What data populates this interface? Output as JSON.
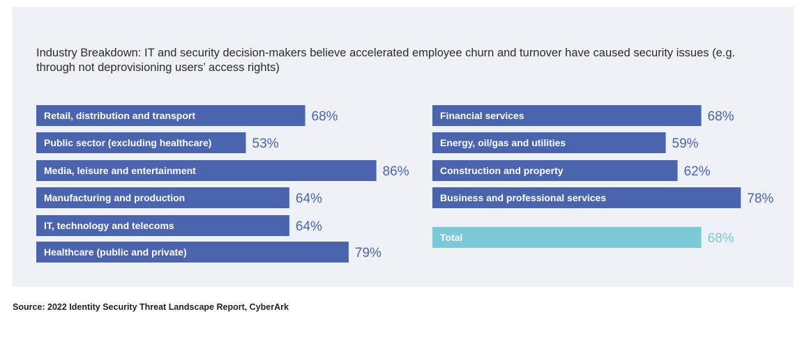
{
  "chart_data": {
    "type": "bar",
    "title": "Industry Breakdown: IT and security decision-makers believe accelerated employee churn and turnover have caused security issues (e.g. through not deprovisioning users’ access rights)",
    "source": "Source: 2022 Identity Security Threat Landscape Report, CyberArk",
    "unit": "%",
    "colors": {
      "bar": "#4a64ad",
      "total": "#7dc8d6",
      "value_text": "#4a64ad",
      "total_text": "#7dc8d6"
    },
    "left_column": [
      {
        "category": "Retail, distribution and transport",
        "value": 68
      },
      {
        "category": "Public sector (excluding healthcare)",
        "value": 53
      },
      {
        "category": "Media, leisure and entertainment",
        "value": 86
      },
      {
        "category": "Manufacturing and production",
        "value": 64
      },
      {
        "category": "IT, technology and telecoms",
        "value": 64
      },
      {
        "category": "Healthcare (public and private)",
        "value": 79
      }
    ],
    "right_column": [
      {
        "category": "Financial services",
        "value": 68
      },
      {
        "category": "Energy, oil/gas and utilities",
        "value": 59
      },
      {
        "category": "Construction and property",
        "value": 62
      },
      {
        "category": "Business and professional services",
        "value": 78
      },
      {
        "category": "Total",
        "value": 68,
        "is_total": true
      }
    ],
    "value_labels": {
      "left": [
        "68%",
        "53%",
        "86%",
        "64%",
        "64%",
        "79%"
      ],
      "right": [
        "68%",
        "59%",
        "62%",
        "78%",
        "68%"
      ]
    }
  }
}
